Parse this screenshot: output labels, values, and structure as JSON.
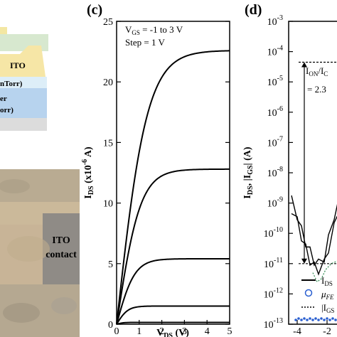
{
  "panels": {
    "c": {
      "label": "(c)"
    },
    "d": {
      "label": "(d)"
    }
  },
  "left_panel": {
    "stack_layers": [
      {
        "label": "ITO",
        "color": "#f6e6a6"
      },
      {
        "label": "nTorr)",
        "color": "#ddeef8"
      },
      {
        "label": "er",
        "color": "#b7d3ee"
      },
      {
        "label": "orr)",
        "color": "#b7d3ee"
      }
    ],
    "colors": {
      "top": "#f3e7a3",
      "cap": "#d7e8cf",
      "substrate": "#dcdcdc"
    },
    "photo_label_line1": "ITO",
    "photo_label_line2": "contact"
  },
  "chart_data": [
    {
      "type": "line",
      "panel": "c",
      "xlabel": "V",
      "xlabel_sub": "DS",
      "xlabel_unit": " (V)",
      "ylabel": "I",
      "ylabel_sub": "DS",
      "ylabel_mid": " (x10",
      "ylabel_sup": "-6",
      "ylabel_unit": " A)",
      "xlim": [
        0,
        5
      ],
      "ylim": [
        0,
        25
      ],
      "x_ticks": [
        "0",
        "1",
        "2",
        "3",
        "4",
        "5"
      ],
      "y_ticks": [
        "0",
        "5",
        "10",
        "15",
        "20",
        "25"
      ],
      "annotation_line1": "V",
      "annotation_line1_sub": "GS",
      "annotation_line1_rest": " = -1 to 3 V",
      "annotation_line2": "Step = 1 V",
      "series": [
        {
          "isat": 22.6,
          "vk": 1.35
        },
        {
          "isat": 12.8,
          "vk": 1.05
        },
        {
          "isat": 5.4,
          "vk": 0.8
        },
        {
          "isat": 1.5,
          "vk": 0.5
        },
        {
          "isat": 0.15,
          "vk": 0.3
        }
      ]
    },
    {
      "type": "line",
      "panel": "d",
      "y_scale": "log",
      "ylabel_parts": [
        "I",
        "DS",
        ", |I",
        "GS",
        "| (A)"
      ],
      "ylim": [
        1e-13,
        0.001
      ],
      "y_ticks": [
        {
          "base": "10",
          "exp": "-3"
        },
        {
          "base": "10",
          "exp": "-4"
        },
        {
          "base": "10",
          "exp": "-5"
        },
        {
          "base": "10",
          "exp": "-6"
        },
        {
          "base": "10",
          "exp": "-7"
        },
        {
          "base": "10",
          "exp": "-8"
        },
        {
          "base": "10",
          "exp": "-9"
        },
        {
          "base": "10",
          "exp": "-10"
        },
        {
          "base": "10",
          "exp": "-11"
        },
        {
          "base": "10",
          "exp": "-12"
        },
        {
          "base": "10",
          "exp": "-13"
        }
      ],
      "x_ticks": [
        "-4",
        "-2"
      ],
      "ion_ioff_label": "I",
      "ion_sub": "ON",
      "ioff_label": "/I",
      "ioff_sub": "C",
      "ratio_value": "= 2.3",
      "on_level_exp": -4.35,
      "off_level_exp": -11.0,
      "legend": [
        {
          "kind": "line",
          "text": "I",
          "sub": "DS"
        },
        {
          "kind": "circle",
          "text": "μ",
          "sub": "FE"
        },
        {
          "kind": "dotted",
          "text": "|I",
          "sub": "GS"
        }
      ]
    }
  ]
}
